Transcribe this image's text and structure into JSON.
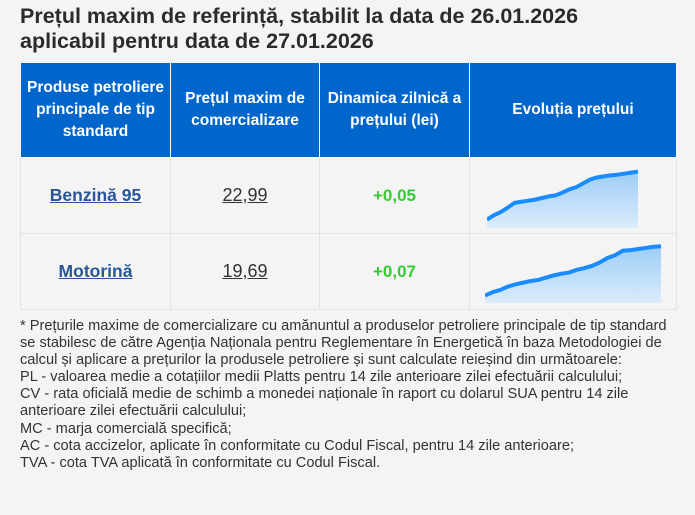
{
  "title": {
    "line1": "Prețul maxim de referință, stabilit la data de 26.01.2026",
    "line2": "aplicabil pentru data de 27.01.2026"
  },
  "table": {
    "headers": [
      "Produse petroliere principale de tip standard",
      "Prețul maxim de comercializare",
      "Dinamica zilnică a prețului (lei)",
      "Evoluția prețului"
    ],
    "rows": [
      {
        "product": "Benzină 95",
        "price": "22,99",
        "change": "+0,05",
        "trend": [
          10,
          18,
          24,
          32,
          41,
          43,
          45,
          47,
          50,
          53,
          55,
          60,
          66,
          70,
          77,
          84,
          88,
          90,
          92,
          93,
          95,
          97,
          99
        ]
      },
      {
        "product": "Motorină",
        "price": "19,69",
        "change": "+0,07",
        "trend": [
          8,
          14,
          18,
          24,
          28,
          31,
          34,
          36,
          40,
          44,
          47,
          49,
          54,
          57,
          61,
          67,
          75,
          80,
          88,
          89,
          91,
          93,
          95,
          96
        ]
      }
    ]
  },
  "colors": {
    "header_bg": "#0066cc",
    "link": "#2a5599",
    "positive": "#33cc33",
    "spark_line": "#1a8cff",
    "spark_fill": "#9ccdf7"
  },
  "footnote": {
    "intro": "* Prețurile maxime de comercializare cu amănuntul a produselor petroliere principale de tip standard se stabilesc de către Agenția Naționala pentru Reglementare în Energetică în baza Metodologiei de calcul și aplicare a prețurilor la produsele petroliere și sunt calculate reieșind din următoarele:",
    "items": [
      "PL - valoarea medie a cotațiilor medii Platts pentru 14 zile anterioare zilei efectuării calculului;",
      "CV - rata oficială medie de schimb a monedei naționale în raport cu dolarul SUA pentru 14 zile anterioare zilei efectuării calculului;",
      "MC - marja comercială specifică;",
      "AC - cota accizelor, aplicate în conformitate cu Codul Fiscal, pentru 14 zile anterioare;",
      "TVA - cota TVA aplicată în conformitate cu Codul Fiscal."
    ]
  }
}
